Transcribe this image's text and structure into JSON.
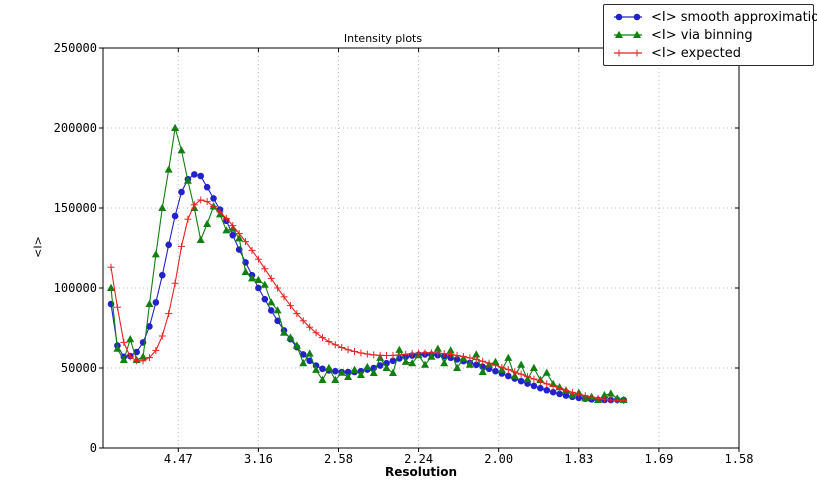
{
  "figure": {
    "background": "#ffffff",
    "text_color": "#000000",
    "grid_color": "#bbbbbb",
    "axis_color": "#000000"
  },
  "chart_data": {
    "type": "line",
    "title": "Intensity plots",
    "xlabel": "Resolution",
    "ylabel": "<I>",
    "grid": true,
    "legend_position": "top-right",
    "x_axis": {
      "unit": "1/d^2 (resolution shown as d in angstroms)",
      "range": [
        0.003,
        0.4
      ],
      "tick_positions": [
        0.05,
        0.1,
        0.15,
        0.2,
        0.25,
        0.3,
        0.35,
        0.4
      ],
      "tick_labels": [
        "4.47",
        "3.16",
        "2.58",
        "2.24",
        "2.00",
        "1.83",
        "1.69",
        "1.58"
      ]
    },
    "y_axis": {
      "range": [
        0,
        250000
      ],
      "tick_values": [
        0,
        50000,
        100000,
        150000,
        200000,
        250000
      ],
      "tick_labels": [
        "0",
        "50000",
        "100000",
        "150000",
        "200000",
        "250000"
      ]
    },
    "x": [
      0.008,
      0.012,
      0.016,
      0.02,
      0.024,
      0.028,
      0.032,
      0.036,
      0.04,
      0.044,
      0.048,
      0.052,
      0.056,
      0.06,
      0.064,
      0.068,
      0.072,
      0.076,
      0.08,
      0.084,
      0.088,
      0.092,
      0.096,
      0.1,
      0.104,
      0.108,
      0.112,
      0.116,
      0.12,
      0.124,
      0.128,
      0.132,
      0.136,
      0.14,
      0.144,
      0.148,
      0.152,
      0.156,
      0.16,
      0.164,
      0.168,
      0.172,
      0.176,
      0.18,
      0.184,
      0.188,
      0.192,
      0.196,
      0.2,
      0.204,
      0.208,
      0.212,
      0.216,
      0.22,
      0.224,
      0.228,
      0.232,
      0.236,
      0.24,
      0.244,
      0.248,
      0.252,
      0.256,
      0.26,
      0.264,
      0.268,
      0.272,
      0.276,
      0.28,
      0.284,
      0.288,
      0.292,
      0.296,
      0.3,
      0.304,
      0.308,
      0.312,
      0.316,
      0.32,
      0.324,
      0.328
    ],
    "series": [
      {
        "name": "<I> smooth approximation",
        "color": "#2222cc",
        "marker": "circle",
        "values": [
          90000,
          64000,
          57000,
          57500,
          60000,
          66000,
          76000,
          91000,
          108000,
          127000,
          145000,
          160000,
          168000,
          171000,
          170000,
          163000,
          156000,
          149000,
          142000,
          133000,
          124000,
          116000,
          108000,
          100000,
          93000,
          86000,
          79500,
          73500,
          68000,
          63000,
          58500,
          54500,
          51500,
          49500,
          48500,
          48000,
          47500,
          47500,
          47500,
          48000,
          49000,
          50000,
          51500,
          53000,
          54500,
          56000,
          57000,
          57800,
          58300,
          58500,
          58400,
          58000,
          57300,
          56400,
          55400,
          54300,
          53200,
          52000,
          50800,
          49500,
          48000,
          46500,
          45000,
          43400,
          41800,
          40300,
          38800,
          37400,
          36100,
          34900,
          33800,
          32800,
          32000,
          31300,
          30800,
          30400,
          30100,
          30000,
          30000,
          30100,
          30000
        ]
      },
      {
        "name": "<I> via binning",
        "color": "#118011",
        "marker": "triangle",
        "values": [
          100000,
          62000,
          55000,
          68000,
          55000,
          57000,
          90000,
          121000,
          150000,
          174000,
          200000,
          186000,
          167000,
          150000,
          130000,
          140000,
          151000,
          146000,
          136000,
          137000,
          131000,
          110000,
          106000,
          105000,
          102000,
          91000,
          86000,
          72000,
          69000,
          64000,
          53000,
          59000,
          48800,
          42500,
          50000,
          42500,
          47000,
          44400,
          48800,
          45600,
          50600,
          46900,
          56300,
          50000,
          46900,
          61300,
          53800,
          53000,
          58000,
          52000,
          57000,
          62000,
          53000,
          61000,
          50000,
          56000,
          52000,
          58500,
          47500,
          52000,
          53800,
          48800,
          56300,
          45000,
          52000,
          43000,
          50000,
          42500,
          47000,
          40000,
          38000,
          36000,
          33000,
          34500,
          31000,
          32000,
          30000,
          33000,
          34000,
          31000,
          30000
        ]
      },
      {
        "name": "<I> expected",
        "color": "#e82222",
        "marker": "plus",
        "values": [
          113000,
          88000,
          66000,
          57000,
          54500,
          54500,
          56500,
          61000,
          70000,
          84000,
          103000,
          126000,
          143000,
          152000,
          155000,
          154000,
          151000,
          147500,
          143500,
          139000,
          134000,
          129000,
          123500,
          118000,
          112000,
          106000,
          100000,
          94500,
          89000,
          84000,
          79500,
          75500,
          72000,
          69000,
          66500,
          64500,
          62800,
          61400,
          60300,
          59400,
          58700,
          58200,
          57900,
          57800,
          57900,
          58200,
          58600,
          59000,
          59300,
          59500,
          59500,
          59300,
          59000,
          58500,
          57900,
          57200,
          56300,
          55300,
          54200,
          53000,
          51700,
          50400,
          49000,
          47600,
          46100,
          44600,
          43100,
          41600,
          40100,
          38700,
          37300,
          36000,
          34800,
          33700,
          32700,
          31800,
          31000,
          30400,
          30000,
          29800,
          29700
        ]
      }
    ]
  }
}
